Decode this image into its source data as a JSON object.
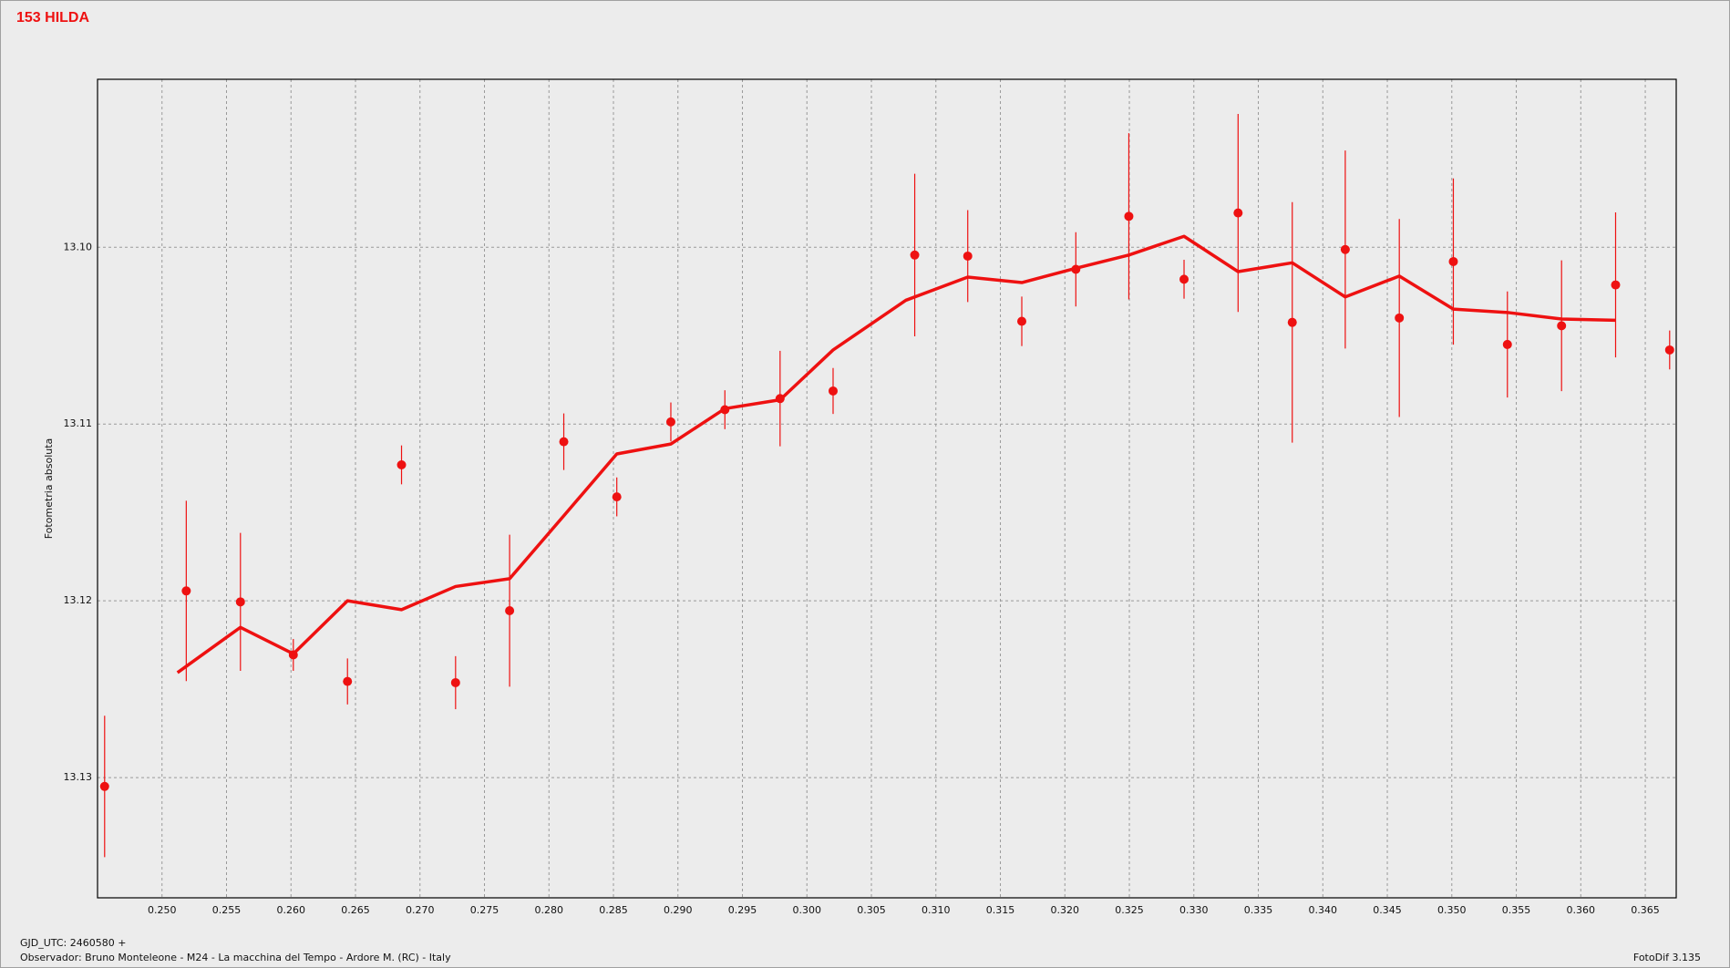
{
  "chart_data": {
    "type": "scatter",
    "title": "153 HILDA",
    "ylabel": "Fotometria absoluta",
    "xlabel": "GJD_UTC: 2460580 +",
    "footer": "Observador: Bruno Monteleone - M24 - La macchina del Tempo - Ardore M. (RC) - Italy",
    "software": "FotoDif 3.135",
    "xlim": [
      0.245,
      0.3674
    ],
    "ylim": [
      13.1368,
      13.0905
    ],
    "xticks": [
      {
        "value": 0.25,
        "label": "0.250"
      },
      0.255,
      {
        "value": 0.26,
        "label": "0.260"
      },
      0.265,
      {
        "value": 0.27,
        "label": "0.270"
      },
      0.275,
      {
        "value": 0.28,
        "label": "0.280"
      },
      0.285,
      {
        "value": 0.29,
        "label": "0.290"
      },
      0.295,
      {
        "value": 0.3,
        "label": "0.300"
      },
      0.305,
      {
        "value": 0.31,
        "label": "0.310"
      },
      0.315,
      {
        "value": 0.32,
        "label": "0.320"
      },
      0.325,
      {
        "value": 0.33,
        "label": "0.330"
      },
      0.335,
      {
        "value": 0.34,
        "label": "0.340"
      },
      0.345,
      {
        "value": 0.35,
        "label": "0.350"
      },
      0.355,
      {
        "value": 0.36,
        "label": "0.360"
      },
      0.365
    ],
    "yticks": [
      {
        "value": 13.1,
        "label": "13.10"
      },
      13.11,
      13.12,
      13.13
    ],
    "grid": true,
    "series": [
      {
        "type": "errorbar",
        "color": "#ee1111",
        "x": [
          0.24555,
          0.25188,
          0.25608,
          0.26018,
          0.26438,
          0.26857,
          0.27276,
          0.27695,
          0.28115,
          0.28526,
          0.28945,
          0.29364,
          0.29792,
          0.30203,
          0.30836,
          0.31247,
          0.31666,
          0.32085,
          0.32496,
          0.32924,
          0.33343,
          0.33763,
          0.34174,
          0.34593,
          0.35012,
          0.35431,
          0.35851,
          0.3627,
          0.36689
        ],
        "values": [
          13.1305,
          13.11944,
          13.12006,
          13.12306,
          13.12456,
          13.11231,
          13.12463,
          13.12056,
          13.111,
          13.11412,
          13.10988,
          13.10919,
          13.10856,
          13.10813,
          13.10044,
          13.1005,
          13.10419,
          13.10125,
          13.09825,
          13.10181,
          13.09806,
          13.10425,
          13.10013,
          13.104,
          13.10081,
          13.1055,
          13.10444,
          13.10213,
          13.10581
        ],
        "errors": [
          0.004,
          0.0051,
          0.0039,
          0.0009,
          0.0013,
          0.0011,
          0.0015,
          0.0043,
          0.0016,
          0.0011,
          0.0011,
          0.0011,
          0.0027,
          0.0013,
          0.0046,
          0.0026,
          0.0014,
          0.0021,
          0.0047,
          0.0011,
          0.0056,
          0.0068,
          0.0056,
          0.0056,
          0.0047,
          0.003,
          0.0037,
          0.0041,
          0.0011
        ]
      },
      {
        "type": "line",
        "color": "#ee1111",
        "x": [
          0.2512,
          0.25608,
          0.26018,
          0.26438,
          0.26857,
          0.27276,
          0.27695,
          0.28115,
          0.28526,
          0.28945,
          0.29364,
          0.29792,
          0.30203,
          0.30767,
          0.31247,
          0.31666,
          0.32085,
          0.32496,
          0.32924,
          0.33343,
          0.33763,
          0.34174,
          0.34593,
          0.35012,
          0.35431,
          0.35851,
          0.3627
        ],
        "values": [
          13.12406,
          13.1215,
          13.123,
          13.12,
          13.1205,
          13.11919,
          13.11875,
          13.11519,
          13.11169,
          13.11113,
          13.10913,
          13.10863,
          13.10581,
          13.103,
          13.10169,
          13.102,
          13.10119,
          13.10044,
          13.09938,
          13.10138,
          13.10088,
          13.10281,
          13.10163,
          13.1035,
          13.10369,
          13.10406,
          13.10413
        ]
      }
    ]
  }
}
